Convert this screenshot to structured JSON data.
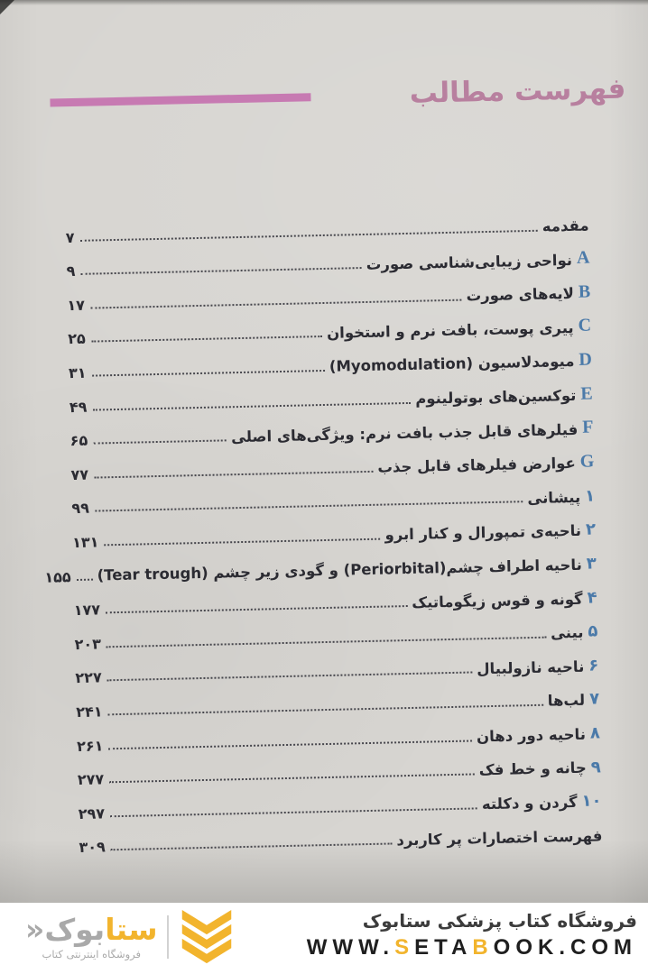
{
  "page": {
    "title": "فهرست مطالب",
    "entries": [
      {
        "prefix": "",
        "title": "مقدمه",
        "page": "۷"
      },
      {
        "prefix": "A",
        "title": "نواحی زیبایی‌شناسی صورت",
        "page": "۹"
      },
      {
        "prefix": "B",
        "title": "لایه‌های صورت",
        "page": "۱۷"
      },
      {
        "prefix": "C",
        "title": "پیری پوست، بافت نرم و استخوان",
        "page": "۲۵"
      },
      {
        "prefix": "D",
        "title": "میومدلاسیون (Myomodulation)",
        "page": "۳۱"
      },
      {
        "prefix": "E",
        "title": "توکسین‌های بوتولینوم",
        "page": "۴۹"
      },
      {
        "prefix": "F",
        "title": "فیلرهای قابل جذب بافت نرم: ویژگی‌های اصلی",
        "page": "۶۵"
      },
      {
        "prefix": "G",
        "title": "عوارض فیلرهای قابل جذب",
        "page": "۷۷"
      },
      {
        "prefix": "۱",
        "title": "پیشانی",
        "page": "۹۹"
      },
      {
        "prefix": "۲",
        "title": "ناحیه‌ی تمپورال و کنار ابرو",
        "page": "۱۳۱"
      },
      {
        "prefix": "۳",
        "title": "ناحیه اطراف چشم(Periorbital) و گودی زیر چشم (Tear trough)",
        "page": "۱۵۵"
      },
      {
        "prefix": "۴",
        "title": "گونه و قوس زیگوماتیک",
        "page": "۱۷۷"
      },
      {
        "prefix": "۵",
        "title": "بینی",
        "page": "۲۰۳"
      },
      {
        "prefix": "۶",
        "title": "ناحیه نازولبیال",
        "page": "۲۲۷"
      },
      {
        "prefix": "۷",
        "title": "لب‌ها",
        "page": "۲۴۱"
      },
      {
        "prefix": "۸",
        "title": "ناحیه دور دهان",
        "page": "۲۶۱"
      },
      {
        "prefix": "۹",
        "title": "چانه و خط فک",
        "page": "۲۷۷"
      },
      {
        "prefix": "۱۰",
        "title": "گردن و دکلته",
        "page": "۲۹۷"
      },
      {
        "prefix": "",
        "title": "فهرست اختصارات پر کاربرد",
        "page": "۳۰۹"
      }
    ]
  },
  "footer": {
    "store_name_fa": "فروشگاه کتاب پزشکی ستابوک",
    "website_segments": [
      {
        "text": "WWW.",
        "color": "dark"
      },
      {
        "text": "S",
        "color": "yellow"
      },
      {
        "text": "ETA",
        "color": "dark"
      },
      {
        "text": "B",
        "color": "yellow"
      },
      {
        "text": "OOK.COM",
        "color": "dark"
      }
    ],
    "logo_text_primary": "ستا",
    "logo_text_secondary": "بوک",
    "logo_mark": "«",
    "logo_tagline": "فروشگاه اینترنتی کتاب"
  },
  "colors": {
    "page_bg": "#d7d5d1",
    "title_pink": "#b8809f",
    "bar_pink": "#c77ab2",
    "accent_blue": "#4b7aa9",
    "text_dark": "#2b2b32",
    "leader_dot": "#3b3b42",
    "footer_bg": "#ffffff",
    "footer_text": "#3c3c3c",
    "url_dark": "#1f1f1f",
    "brand_yellow": "#f2b42d",
    "brand_gray": "#a9a9a9"
  }
}
